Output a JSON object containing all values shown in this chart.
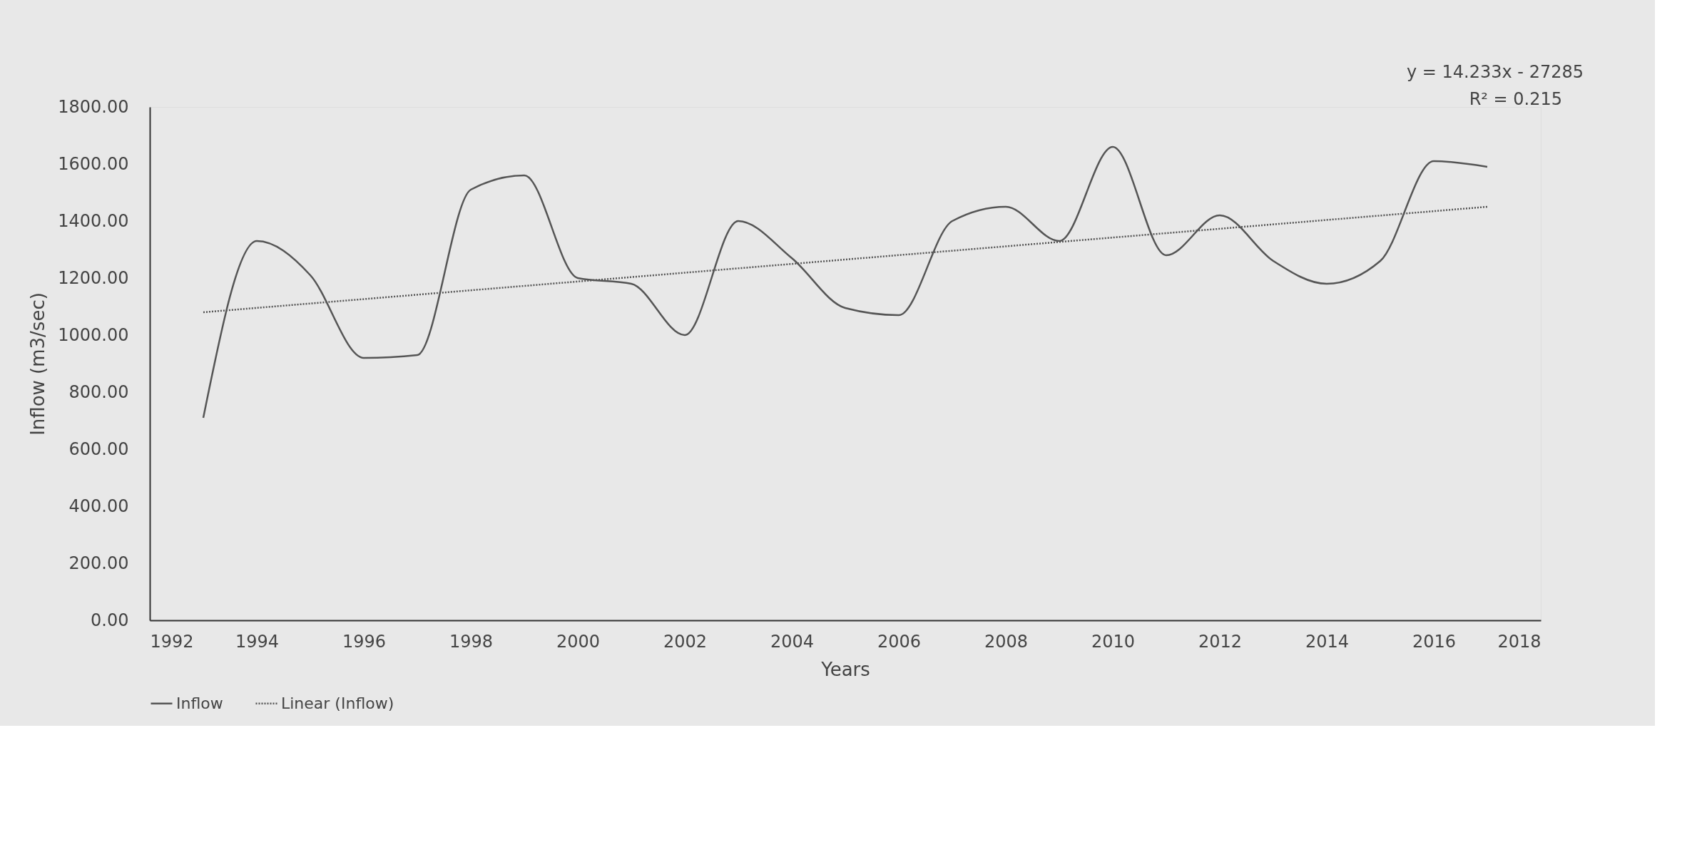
{
  "chart_data": {
    "type": "line",
    "xlabel": "Years",
    "ylabel": "Inflow (m3/sec)",
    "annotations": [
      "y = 14.233x - 27285",
      "R² = 0.215"
    ],
    "x": [
      1993,
      1994,
      1995,
      1996,
      1997,
      1998,
      1999,
      2000,
      2001,
      2002,
      2003,
      2004,
      2005,
      2006,
      2007,
      2008,
      2009,
      2010,
      2011,
      2012,
      2013,
      2014,
      2015,
      2016,
      2017
    ],
    "series": [
      {
        "name": "Inflow",
        "color": "#555555",
        "line_style": "solid",
        "values": [
          710,
          1330,
          1210,
          920,
          930,
          1510,
          1560,
          1200,
          1180,
          1000,
          1400,
          1270,
          1095,
          1070,
          1400,
          1450,
          1330,
          1660,
          1280,
          1420,
          1260,
          1180,
          1260,
          1610,
          1590
        ]
      },
      {
        "name": "Linear (Inflow)",
        "type": "line",
        "color": "#555555",
        "line_style": "dotted",
        "x": [
          1993,
          2017
        ],
        "values": [
          1080,
          1450
        ]
      }
    ],
    "xlim": [
      1992,
      2018
    ],
    "xticks": [
      1992,
      1994,
      1996,
      1998,
      2000,
      2002,
      2004,
      2006,
      2008,
      2010,
      2012,
      2014,
      2016,
      2018
    ],
    "ylim": [
      0,
      1800
    ],
    "yticks": [
      {
        "value": 0,
        "label": "0.00"
      },
      {
        "value": 200,
        "label": "200.00"
      },
      {
        "value": 400,
        "label": "400.00"
      },
      {
        "value": 600,
        "label": "600.00"
      },
      {
        "value": 800,
        "label": "800.00"
      },
      {
        "value": 1000,
        "label": "1000.00"
      },
      {
        "value": 1200,
        "label": "1200.00"
      },
      {
        "value": 1400,
        "label": "1400.00"
      },
      {
        "value": 1600,
        "label": "1600.00"
      },
      {
        "value": 1800,
        "label": "1800.00"
      }
    ],
    "grid": false,
    "legend": "bottom",
    "marker": "none"
  }
}
